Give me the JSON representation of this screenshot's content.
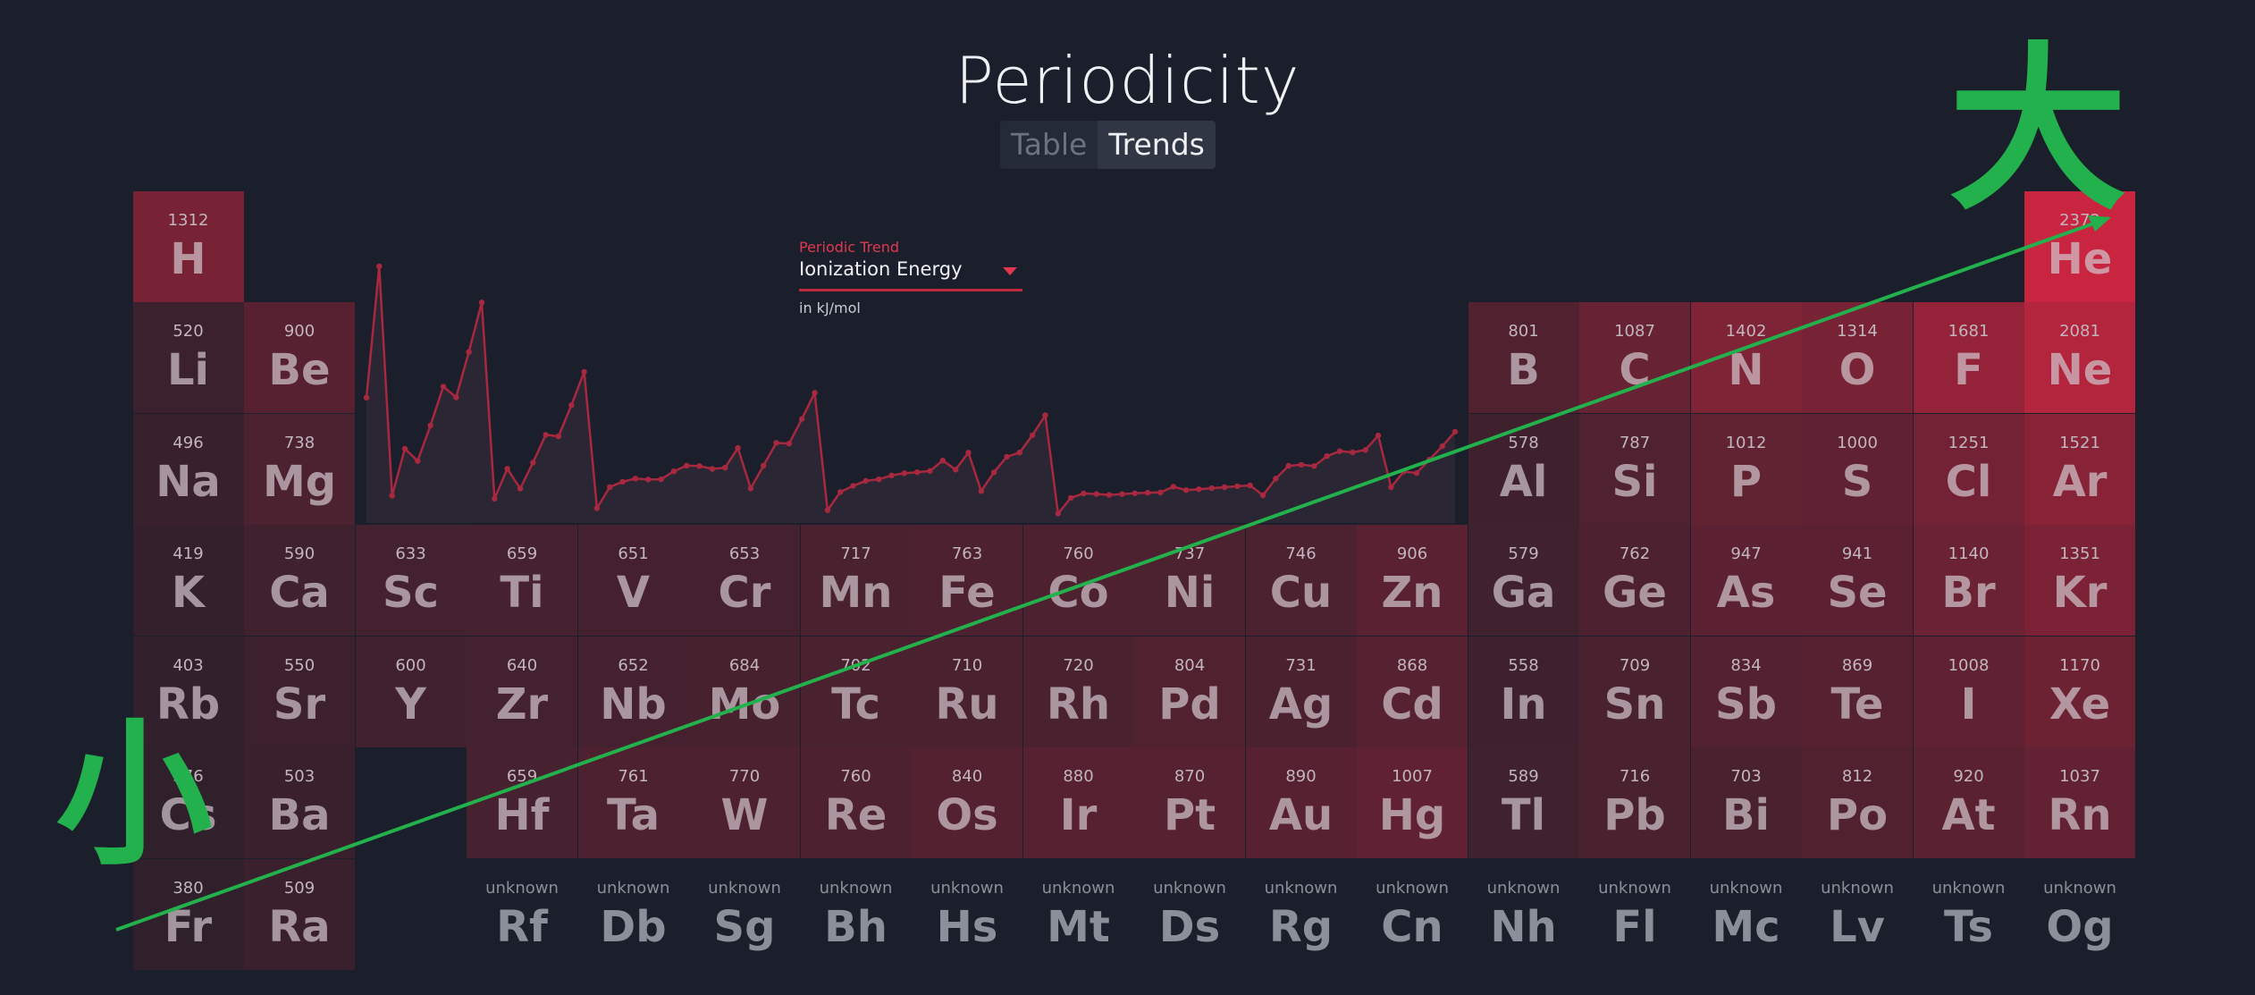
{
  "app": {
    "title": "Periodicity",
    "tabs": [
      {
        "label": "Table",
        "active": false
      },
      {
        "label": "Trends",
        "active": true
      }
    ]
  },
  "trend_selector": {
    "label": "Periodic Trend",
    "value": "Ionization Energy",
    "unit": "in kJ/mol"
  },
  "colors": {
    "background": "#1b1f2b",
    "accent": "#c92540",
    "annotation": "#22b14c"
  },
  "elements": [
    {
      "symbol": "H",
      "value": "1312",
      "group": 1,
      "period": 1
    },
    {
      "symbol": "He",
      "value": "2372",
      "group": 18,
      "period": 1
    },
    {
      "symbol": "Li",
      "value": "520",
      "group": 1,
      "period": 2
    },
    {
      "symbol": "Be",
      "value": "900",
      "group": 2,
      "period": 2
    },
    {
      "symbol": "B",
      "value": "801",
      "group": 13,
      "period": 2
    },
    {
      "symbol": "C",
      "value": "1087",
      "group": 14,
      "period": 2
    },
    {
      "symbol": "N",
      "value": "1402",
      "group": 15,
      "period": 2
    },
    {
      "symbol": "O",
      "value": "1314",
      "group": 16,
      "period": 2
    },
    {
      "symbol": "F",
      "value": "1681",
      "group": 17,
      "period": 2
    },
    {
      "symbol": "Ne",
      "value": "2081",
      "group": 18,
      "period": 2
    },
    {
      "symbol": "Na",
      "value": "496",
      "group": 1,
      "period": 3
    },
    {
      "symbol": "Mg",
      "value": "738",
      "group": 2,
      "period": 3
    },
    {
      "symbol": "Al",
      "value": "578",
      "group": 13,
      "period": 3
    },
    {
      "symbol": "Si",
      "value": "787",
      "group": 14,
      "period": 3
    },
    {
      "symbol": "P",
      "value": "1012",
      "group": 15,
      "period": 3
    },
    {
      "symbol": "S",
      "value": "1000",
      "group": 16,
      "period": 3
    },
    {
      "symbol": "Cl",
      "value": "1251",
      "group": 17,
      "period": 3
    },
    {
      "symbol": "Ar",
      "value": "1521",
      "group": 18,
      "period": 3
    },
    {
      "symbol": "K",
      "value": "419",
      "group": 1,
      "period": 4
    },
    {
      "symbol": "Ca",
      "value": "590",
      "group": 2,
      "period": 4
    },
    {
      "symbol": "Sc",
      "value": "633",
      "group": 3,
      "period": 4
    },
    {
      "symbol": "Ti",
      "value": "659",
      "group": 4,
      "period": 4
    },
    {
      "symbol": "V",
      "value": "651",
      "group": 5,
      "period": 4
    },
    {
      "symbol": "Cr",
      "value": "653",
      "group": 6,
      "period": 4
    },
    {
      "symbol": "Mn",
      "value": "717",
      "group": 7,
      "period": 4
    },
    {
      "symbol": "Fe",
      "value": "763",
      "group": 8,
      "period": 4
    },
    {
      "symbol": "Co",
      "value": "760",
      "group": 9,
      "period": 4
    },
    {
      "symbol": "Ni",
      "value": "737",
      "group": 10,
      "period": 4
    },
    {
      "symbol": "Cu",
      "value": "746",
      "group": 11,
      "period": 4
    },
    {
      "symbol": "Zn",
      "value": "906",
      "group": 12,
      "period": 4
    },
    {
      "symbol": "Ga",
      "value": "579",
      "group": 13,
      "period": 4
    },
    {
      "symbol": "Ge",
      "value": "762",
      "group": 14,
      "period": 4
    },
    {
      "symbol": "As",
      "value": "947",
      "group": 15,
      "period": 4
    },
    {
      "symbol": "Se",
      "value": "941",
      "group": 16,
      "period": 4
    },
    {
      "symbol": "Br",
      "value": "1140",
      "group": 17,
      "period": 4
    },
    {
      "symbol": "Kr",
      "value": "1351",
      "group": 18,
      "period": 4
    },
    {
      "symbol": "Rb",
      "value": "403",
      "group": 1,
      "period": 5
    },
    {
      "symbol": "Sr",
      "value": "550",
      "group": 2,
      "period": 5
    },
    {
      "symbol": "Y",
      "value": "600",
      "group": 3,
      "period": 5
    },
    {
      "symbol": "Zr",
      "value": "640",
      "group": 4,
      "period": 5
    },
    {
      "symbol": "Nb",
      "value": "652",
      "group": 5,
      "period": 5
    },
    {
      "symbol": "Mo",
      "value": "684",
      "group": 6,
      "period": 5
    },
    {
      "symbol": "Tc",
      "value": "702",
      "group": 7,
      "period": 5
    },
    {
      "symbol": "Ru",
      "value": "710",
      "group": 8,
      "period": 5
    },
    {
      "symbol": "Rh",
      "value": "720",
      "group": 9,
      "period": 5
    },
    {
      "symbol": "Pd",
      "value": "804",
      "group": 10,
      "period": 5
    },
    {
      "symbol": "Ag",
      "value": "731",
      "group": 11,
      "period": 5
    },
    {
      "symbol": "Cd",
      "value": "868",
      "group": 12,
      "period": 5
    },
    {
      "symbol": "In",
      "value": "558",
      "group": 13,
      "period": 5
    },
    {
      "symbol": "Sn",
      "value": "709",
      "group": 14,
      "period": 5
    },
    {
      "symbol": "Sb",
      "value": "834",
      "group": 15,
      "period": 5
    },
    {
      "symbol": "Te",
      "value": "869",
      "group": 16,
      "period": 5
    },
    {
      "symbol": "I",
      "value": "1008",
      "group": 17,
      "period": 5
    },
    {
      "symbol": "Xe",
      "value": "1170",
      "group": 18,
      "period": 5
    },
    {
      "symbol": "Cs",
      "value": "376",
      "group": 1,
      "period": 6
    },
    {
      "symbol": "Ba",
      "value": "503",
      "group": 2,
      "period": 6
    },
    {
      "symbol": "Hf",
      "value": "659",
      "group": 4,
      "period": 6
    },
    {
      "symbol": "Ta",
      "value": "761",
      "group": 5,
      "period": 6
    },
    {
      "symbol": "W",
      "value": "770",
      "group": 6,
      "period": 6
    },
    {
      "symbol": "Re",
      "value": "760",
      "group": 7,
      "period": 6
    },
    {
      "symbol": "Os",
      "value": "840",
      "group": 8,
      "period": 6
    },
    {
      "symbol": "Ir",
      "value": "880",
      "group": 9,
      "period": 6
    },
    {
      "symbol": "Pt",
      "value": "870",
      "group": 10,
      "period": 6
    },
    {
      "symbol": "Au",
      "value": "890",
      "group": 11,
      "period": 6
    },
    {
      "symbol": "Hg",
      "value": "1007",
      "group": 12,
      "period": 6
    },
    {
      "symbol": "Tl",
      "value": "589",
      "group": 13,
      "period": 6
    },
    {
      "symbol": "Pb",
      "value": "716",
      "group": 14,
      "period": 6
    },
    {
      "symbol": "Bi",
      "value": "703",
      "group": 15,
      "period": 6
    },
    {
      "symbol": "Po",
      "value": "812",
      "group": 16,
      "period": 6
    },
    {
      "symbol": "At",
      "value": "920",
      "group": 17,
      "period": 6
    },
    {
      "symbol": "Rn",
      "value": "1037",
      "group": 18,
      "period": 6
    },
    {
      "symbol": "Fr",
      "value": "380",
      "group": 1,
      "period": 7
    },
    {
      "symbol": "Ra",
      "value": "509",
      "group": 2,
      "period": 7
    },
    {
      "symbol": "Rf",
      "value": "unknown",
      "group": 4,
      "period": 7
    },
    {
      "symbol": "Db",
      "value": "unknown",
      "group": 5,
      "period": 7
    },
    {
      "symbol": "Sg",
      "value": "unknown",
      "group": 6,
      "period": 7
    },
    {
      "symbol": "Bh",
      "value": "unknown",
      "group": 7,
      "period": 7
    },
    {
      "symbol": "Hs",
      "value": "unknown",
      "group": 8,
      "period": 7
    },
    {
      "symbol": "Mt",
      "value": "unknown",
      "group": 9,
      "period": 7
    },
    {
      "symbol": "Ds",
      "value": "unknown",
      "group": 10,
      "period": 7
    },
    {
      "symbol": "Rg",
      "value": "unknown",
      "group": 11,
      "period": 7
    },
    {
      "symbol": "Cn",
      "value": "unknown",
      "group": 12,
      "period": 7
    },
    {
      "symbol": "Nh",
      "value": "unknown",
      "group": 13,
      "period": 7
    },
    {
      "symbol": "Fl",
      "value": "unknown",
      "group": 14,
      "period": 7
    },
    {
      "symbol": "Mc",
      "value": "unknown",
      "group": 15,
      "period": 7
    },
    {
      "symbol": "Lv",
      "value": "unknown",
      "group": 16,
      "period": 7
    },
    {
      "symbol": "Ts",
      "value": "unknown",
      "group": 17,
      "period": 7
    },
    {
      "symbol": "Og",
      "value": "unknown",
      "group": 18,
      "period": 7
    }
  ],
  "trend_chart": {
    "values": [
      1312,
      2372,
      520,
      900,
      801,
      1087,
      1402,
      1314,
      1681,
      2081,
      496,
      738,
      578,
      787,
      1012,
      1000,
      1251,
      1521,
      419,
      590,
      633,
      659,
      651,
      653,
      717,
      763,
      760,
      737,
      746,
      906,
      579,
      762,
      947,
      941,
      1140,
      1351,
      403,
      550,
      600,
      640,
      652,
      684,
      702,
      710,
      720,
      804,
      731,
      868,
      558,
      709,
      834,
      869,
      1008,
      1170,
      376,
      503,
      538,
      534,
      527,
      533,
      540,
      545,
      547,
      593,
      566,
      573,
      581,
      589,
      597,
      603,
      524,
      659,
      761,
      770,
      760,
      840,
      880,
      870,
      890,
      1007,
      589,
      716,
      703,
      812,
      920,
      1037
    ]
  },
  "annotations": {
    "big": "大",
    "small": "小"
  }
}
